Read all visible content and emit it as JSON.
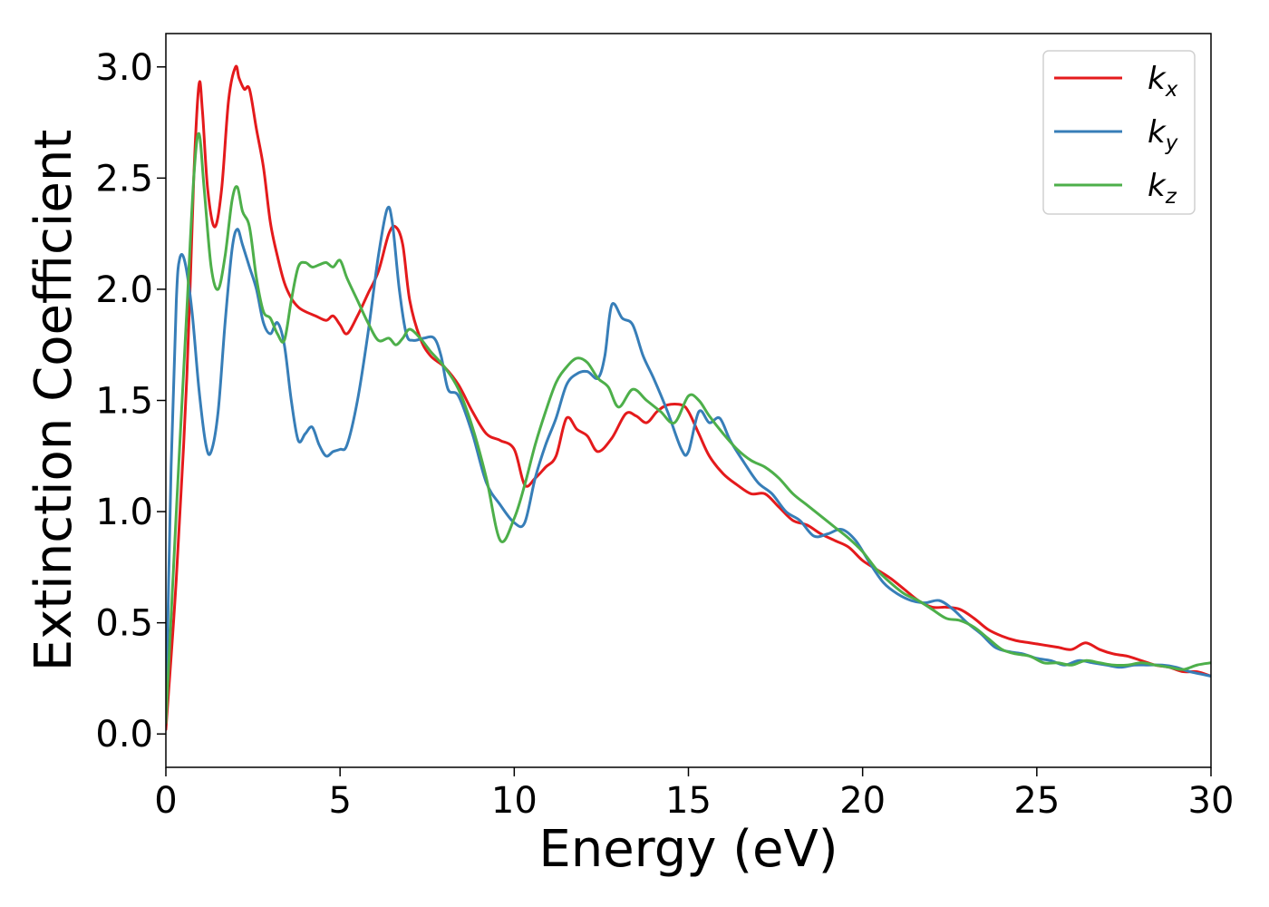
{
  "chart_data": {
    "type": "line",
    "xlabel": "Energy (eV)",
    "ylabel": "Extinction Coefficient",
    "xlim": [
      0,
      30
    ],
    "ylim": [
      -0.15,
      3.15
    ],
    "xticks": [
      0,
      5,
      10,
      15,
      20,
      25,
      30
    ],
    "yticks": [
      0.0,
      0.5,
      1.0,
      1.5,
      2.0,
      2.5,
      3.0
    ],
    "xtick_labels": [
      "0",
      "5",
      "10",
      "15",
      "20",
      "25",
      "30"
    ],
    "ytick_labels": [
      "0.0",
      "0.5",
      "1.0",
      "1.5",
      "2.0",
      "2.5",
      "3.0"
    ],
    "grid": false,
    "legend_position": "top-right",
    "series": [
      {
        "name": "k_x",
        "legend_base": "k",
        "legend_sub": "x",
        "color": "#e41a1c",
        "x": [
          0,
          0.3,
          0.6,
          0.8,
          0.95,
          1.05,
          1.2,
          1.4,
          1.6,
          1.8,
          2.0,
          2.1,
          2.25,
          2.4,
          2.6,
          2.8,
          3.0,
          3.2,
          3.4,
          3.6,
          3.8,
          4.0,
          4.3,
          4.6,
          4.8,
          5.0,
          5.2,
          5.5,
          5.8,
          6.1,
          6.4,
          6.6,
          6.8,
          7.0,
          7.3,
          7.6,
          8.0,
          8.4,
          8.8,
          9.2,
          9.6,
          10.0,
          10.3,
          10.6,
          10.9,
          11.2,
          11.5,
          11.8,
          12.1,
          12.4,
          12.8,
          13.2,
          13.5,
          13.8,
          14.1,
          14.4,
          14.8,
          15.0,
          15.3,
          15.6,
          16.0,
          16.4,
          16.8,
          17.2,
          17.6,
          18.0,
          18.4,
          18.8,
          19.2,
          19.6,
          20.0,
          20.4,
          20.8,
          21.2,
          21.6,
          22.0,
          22.4,
          22.8,
          23.2,
          23.6,
          24.0,
          24.4,
          24.8,
          25.2,
          25.6,
          26.0,
          26.4,
          26.8,
          27.2,
          27.6,
          28.0,
          28.4,
          28.8,
          29.2,
          29.6,
          30.0
        ],
        "y": [
          0.02,
          0.7,
          1.6,
          2.5,
          2.92,
          2.8,
          2.45,
          2.28,
          2.45,
          2.85,
          3.0,
          2.95,
          2.9,
          2.9,
          2.72,
          2.55,
          2.3,
          2.15,
          2.03,
          1.96,
          1.92,
          1.9,
          1.88,
          1.86,
          1.88,
          1.84,
          1.8,
          1.88,
          1.98,
          2.08,
          2.25,
          2.28,
          2.2,
          1.95,
          1.78,
          1.7,
          1.65,
          1.57,
          1.45,
          1.35,
          1.32,
          1.28,
          1.12,
          1.15,
          1.2,
          1.25,
          1.42,
          1.37,
          1.34,
          1.27,
          1.33,
          1.44,
          1.43,
          1.4,
          1.45,
          1.48,
          1.48,
          1.45,
          1.35,
          1.25,
          1.17,
          1.12,
          1.08,
          1.08,
          1.02,
          0.96,
          0.94,
          0.9,
          0.87,
          0.84,
          0.78,
          0.74,
          0.7,
          0.65,
          0.6,
          0.57,
          0.57,
          0.56,
          0.52,
          0.47,
          0.44,
          0.42,
          0.41,
          0.4,
          0.39,
          0.38,
          0.41,
          0.38,
          0.36,
          0.35,
          0.33,
          0.31,
          0.3,
          0.28,
          0.28,
          0.26
        ]
      },
      {
        "name": "k_y",
        "legend_base": "k",
        "legend_sub": "y",
        "color": "#377eb8",
        "x": [
          0,
          0.15,
          0.3,
          0.4,
          0.55,
          0.75,
          0.95,
          1.15,
          1.3,
          1.5,
          1.7,
          1.9,
          2.05,
          2.2,
          2.4,
          2.6,
          2.8,
          3.0,
          3.2,
          3.4,
          3.6,
          3.8,
          4.0,
          4.2,
          4.4,
          4.6,
          4.8,
          5.0,
          5.2,
          5.5,
          5.8,
          6.1,
          6.35,
          6.5,
          6.7,
          6.9,
          7.1,
          7.4,
          7.7,
          7.9,
          8.1,
          8.4,
          8.8,
          9.2,
          9.6,
          10.0,
          10.3,
          10.6,
          10.9,
          11.2,
          11.5,
          11.8,
          12.1,
          12.4,
          12.6,
          12.8,
          13.1,
          13.4,
          13.7,
          14.0,
          14.4,
          14.8,
          15.0,
          15.3,
          15.6,
          15.9,
          16.2,
          16.6,
          17.0,
          17.4,
          17.8,
          18.2,
          18.6,
          19.0,
          19.4,
          19.8,
          20.2,
          20.6,
          21.0,
          21.4,
          21.8,
          22.2,
          22.6,
          23.0,
          23.4,
          23.8,
          24.2,
          24.6,
          25.0,
          25.4,
          25.8,
          26.2,
          26.6,
          27.0,
          27.4,
          27.8,
          28.2,
          28.6,
          29.0,
          29.4,
          30.0
        ],
        "y": [
          0.05,
          1.2,
          1.95,
          2.14,
          2.12,
          1.9,
          1.55,
          1.3,
          1.27,
          1.45,
          1.85,
          2.18,
          2.27,
          2.2,
          2.1,
          2.0,
          1.85,
          1.8,
          1.85,
          1.75,
          1.5,
          1.32,
          1.35,
          1.38,
          1.3,
          1.25,
          1.27,
          1.28,
          1.3,
          1.5,
          1.8,
          2.15,
          2.36,
          2.3,
          2.0,
          1.8,
          1.77,
          1.78,
          1.78,
          1.7,
          1.55,
          1.52,
          1.35,
          1.13,
          1.03,
          0.95,
          0.95,
          1.15,
          1.3,
          1.42,
          1.57,
          1.62,
          1.63,
          1.6,
          1.7,
          1.93,
          1.87,
          1.84,
          1.7,
          1.6,
          1.45,
          1.28,
          1.27,
          1.45,
          1.4,
          1.42,
          1.32,
          1.22,
          1.13,
          1.08,
          1.0,
          0.96,
          0.89,
          0.9,
          0.92,
          0.87,
          0.77,
          0.68,
          0.63,
          0.6,
          0.59,
          0.6,
          0.56,
          0.5,
          0.45,
          0.39,
          0.37,
          0.36,
          0.34,
          0.33,
          0.31,
          0.33,
          0.32,
          0.31,
          0.3,
          0.31,
          0.31,
          0.31,
          0.3,
          0.28,
          0.26
        ]
      },
      {
        "name": "k_z",
        "legend_base": "k",
        "legend_sub": "z",
        "color": "#4daf4a",
        "x": [
          0,
          0.3,
          0.6,
          0.8,
          0.95,
          1.1,
          1.3,
          1.5,
          1.7,
          1.9,
          2.05,
          2.2,
          2.4,
          2.6,
          2.8,
          3.0,
          3.2,
          3.4,
          3.6,
          3.8,
          4.0,
          4.2,
          4.4,
          4.6,
          4.8,
          5.0,
          5.2,
          5.5,
          5.8,
          6.1,
          6.4,
          6.6,
          6.8,
          7.0,
          7.3,
          7.6,
          8.0,
          8.4,
          8.8,
          9.2,
          9.6,
          10.0,
          10.3,
          10.6,
          10.9,
          11.2,
          11.5,
          11.8,
          12.1,
          12.4,
          12.7,
          13.0,
          13.4,
          13.8,
          14.2,
          14.6,
          15.0,
          15.3,
          15.6,
          16.0,
          16.4,
          16.8,
          17.2,
          17.6,
          18.0,
          18.4,
          18.8,
          19.2,
          19.6,
          20.0,
          20.4,
          20.8,
          21.2,
          21.6,
          22.0,
          22.4,
          22.8,
          23.2,
          23.6,
          24.0,
          24.4,
          24.8,
          25.2,
          25.6,
          26.0,
          26.4,
          26.8,
          27.2,
          27.6,
          28.0,
          28.4,
          28.8,
          29.2,
          29.6,
          30.0
        ],
        "y": [
          0.05,
          1.0,
          1.9,
          2.5,
          2.7,
          2.45,
          2.1,
          2.0,
          2.15,
          2.4,
          2.46,
          2.35,
          2.28,
          2.05,
          1.9,
          1.87,
          1.8,
          1.77,
          1.95,
          2.1,
          2.12,
          2.1,
          2.11,
          2.12,
          2.1,
          2.13,
          2.05,
          1.95,
          1.85,
          1.77,
          1.78,
          1.75,
          1.78,
          1.82,
          1.78,
          1.72,
          1.65,
          1.55,
          1.38,
          1.15,
          0.87,
          0.97,
          1.12,
          1.3,
          1.45,
          1.58,
          1.65,
          1.69,
          1.67,
          1.6,
          1.56,
          1.47,
          1.55,
          1.5,
          1.45,
          1.4,
          1.52,
          1.5,
          1.43,
          1.35,
          1.28,
          1.23,
          1.2,
          1.15,
          1.08,
          1.03,
          0.98,
          0.93,
          0.88,
          0.82,
          0.74,
          0.68,
          0.63,
          0.6,
          0.56,
          0.52,
          0.51,
          0.48,
          0.43,
          0.38,
          0.36,
          0.35,
          0.32,
          0.32,
          0.31,
          0.33,
          0.32,
          0.31,
          0.31,
          0.32,
          0.31,
          0.3,
          0.29,
          0.31,
          0.32
        ]
      }
    ]
  }
}
